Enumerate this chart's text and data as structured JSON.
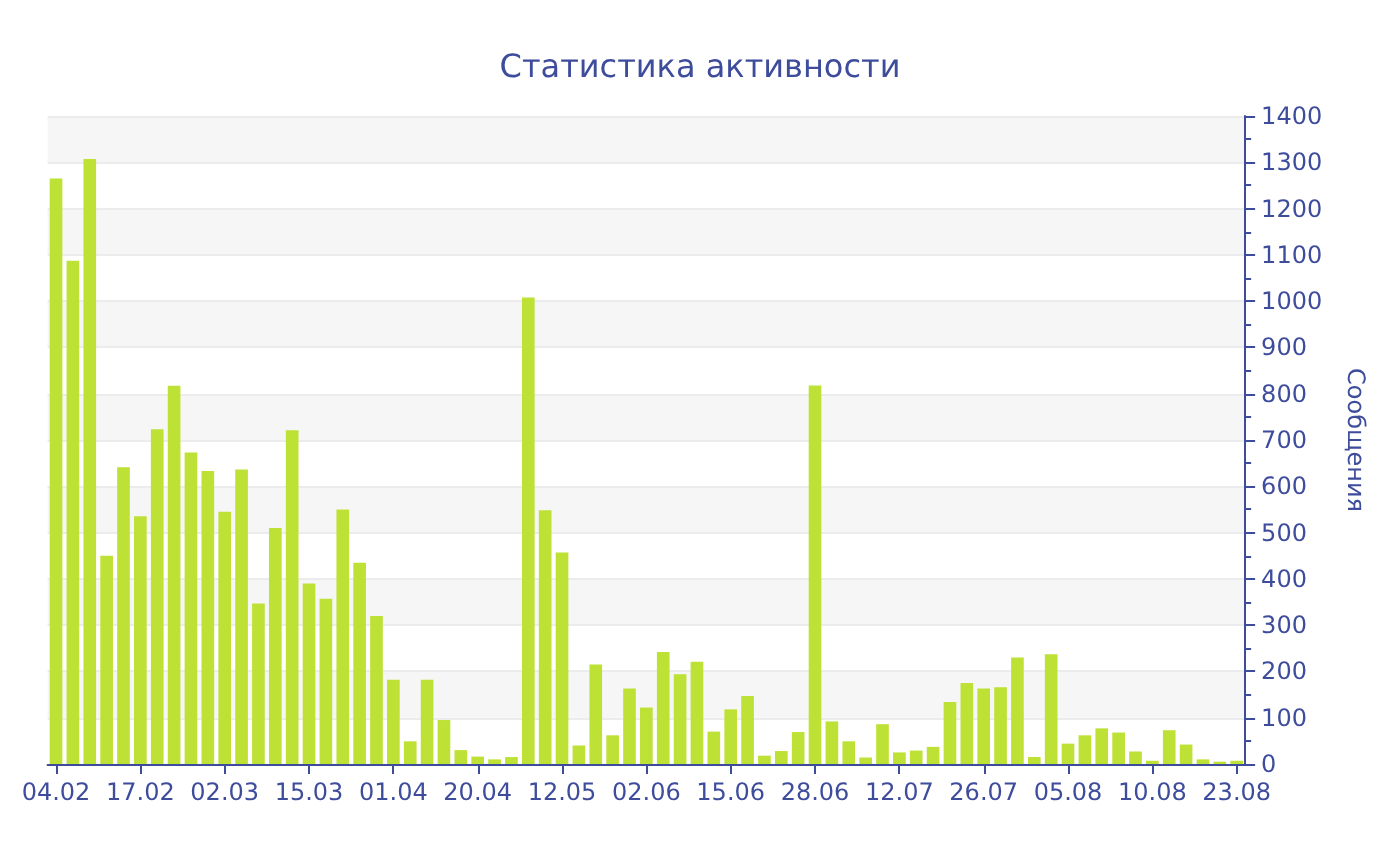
{
  "chart_data": {
    "type": "bar",
    "title": "Статистика активности",
    "ylabel": "Сообщения",
    "categories": [
      "04.02",
      null,
      null,
      null,
      null,
      "17.02",
      null,
      null,
      null,
      null,
      "02.03",
      null,
      null,
      null,
      null,
      "15.03",
      null,
      null,
      null,
      null,
      "01.04",
      null,
      null,
      null,
      null,
      "20.04",
      null,
      null,
      null,
      null,
      "12.05",
      null,
      null,
      null,
      null,
      "02.06",
      null,
      null,
      null,
      null,
      "15.06",
      null,
      null,
      null,
      null,
      "28.06",
      null,
      null,
      null,
      null,
      "12.07",
      null,
      null,
      null,
      null,
      "26.07",
      null,
      null,
      null,
      null,
      "05.08",
      null,
      null,
      null,
      null,
      "10.08",
      null,
      null,
      null,
      null,
      "23.08"
    ],
    "values": [
      1265,
      1087,
      1307,
      450,
      641,
      535,
      723,
      817,
      673,
      633,
      545,
      636,
      347,
      510,
      721,
      390,
      357,
      550,
      435,
      320,
      182,
      49,
      182,
      95,
      30,
      16,
      10,
      15,
      1008,
      548,
      457,
      40,
      215,
      62,
      163,
      122,
      242,
      194,
      221,
      70,
      118,
      147,
      18,
      28,
      69,
      818,
      92,
      49,
      14,
      86,
      25,
      29,
      37,
      134,
      175,
      163,
      166,
      230,
      15,
      237,
      44,
      62,
      77,
      68,
      27,
      7,
      73,
      42,
      10,
      5,
      7
    ],
    "color": "#bde134",
    "ylim": [
      0,
      1400
    ],
    "yticks": [
      0,
      100,
      200,
      300,
      400,
      500,
      600,
      700,
      800,
      900,
      1000,
      1100,
      1200,
      1300,
      1400
    ],
    "grid": "y"
  }
}
